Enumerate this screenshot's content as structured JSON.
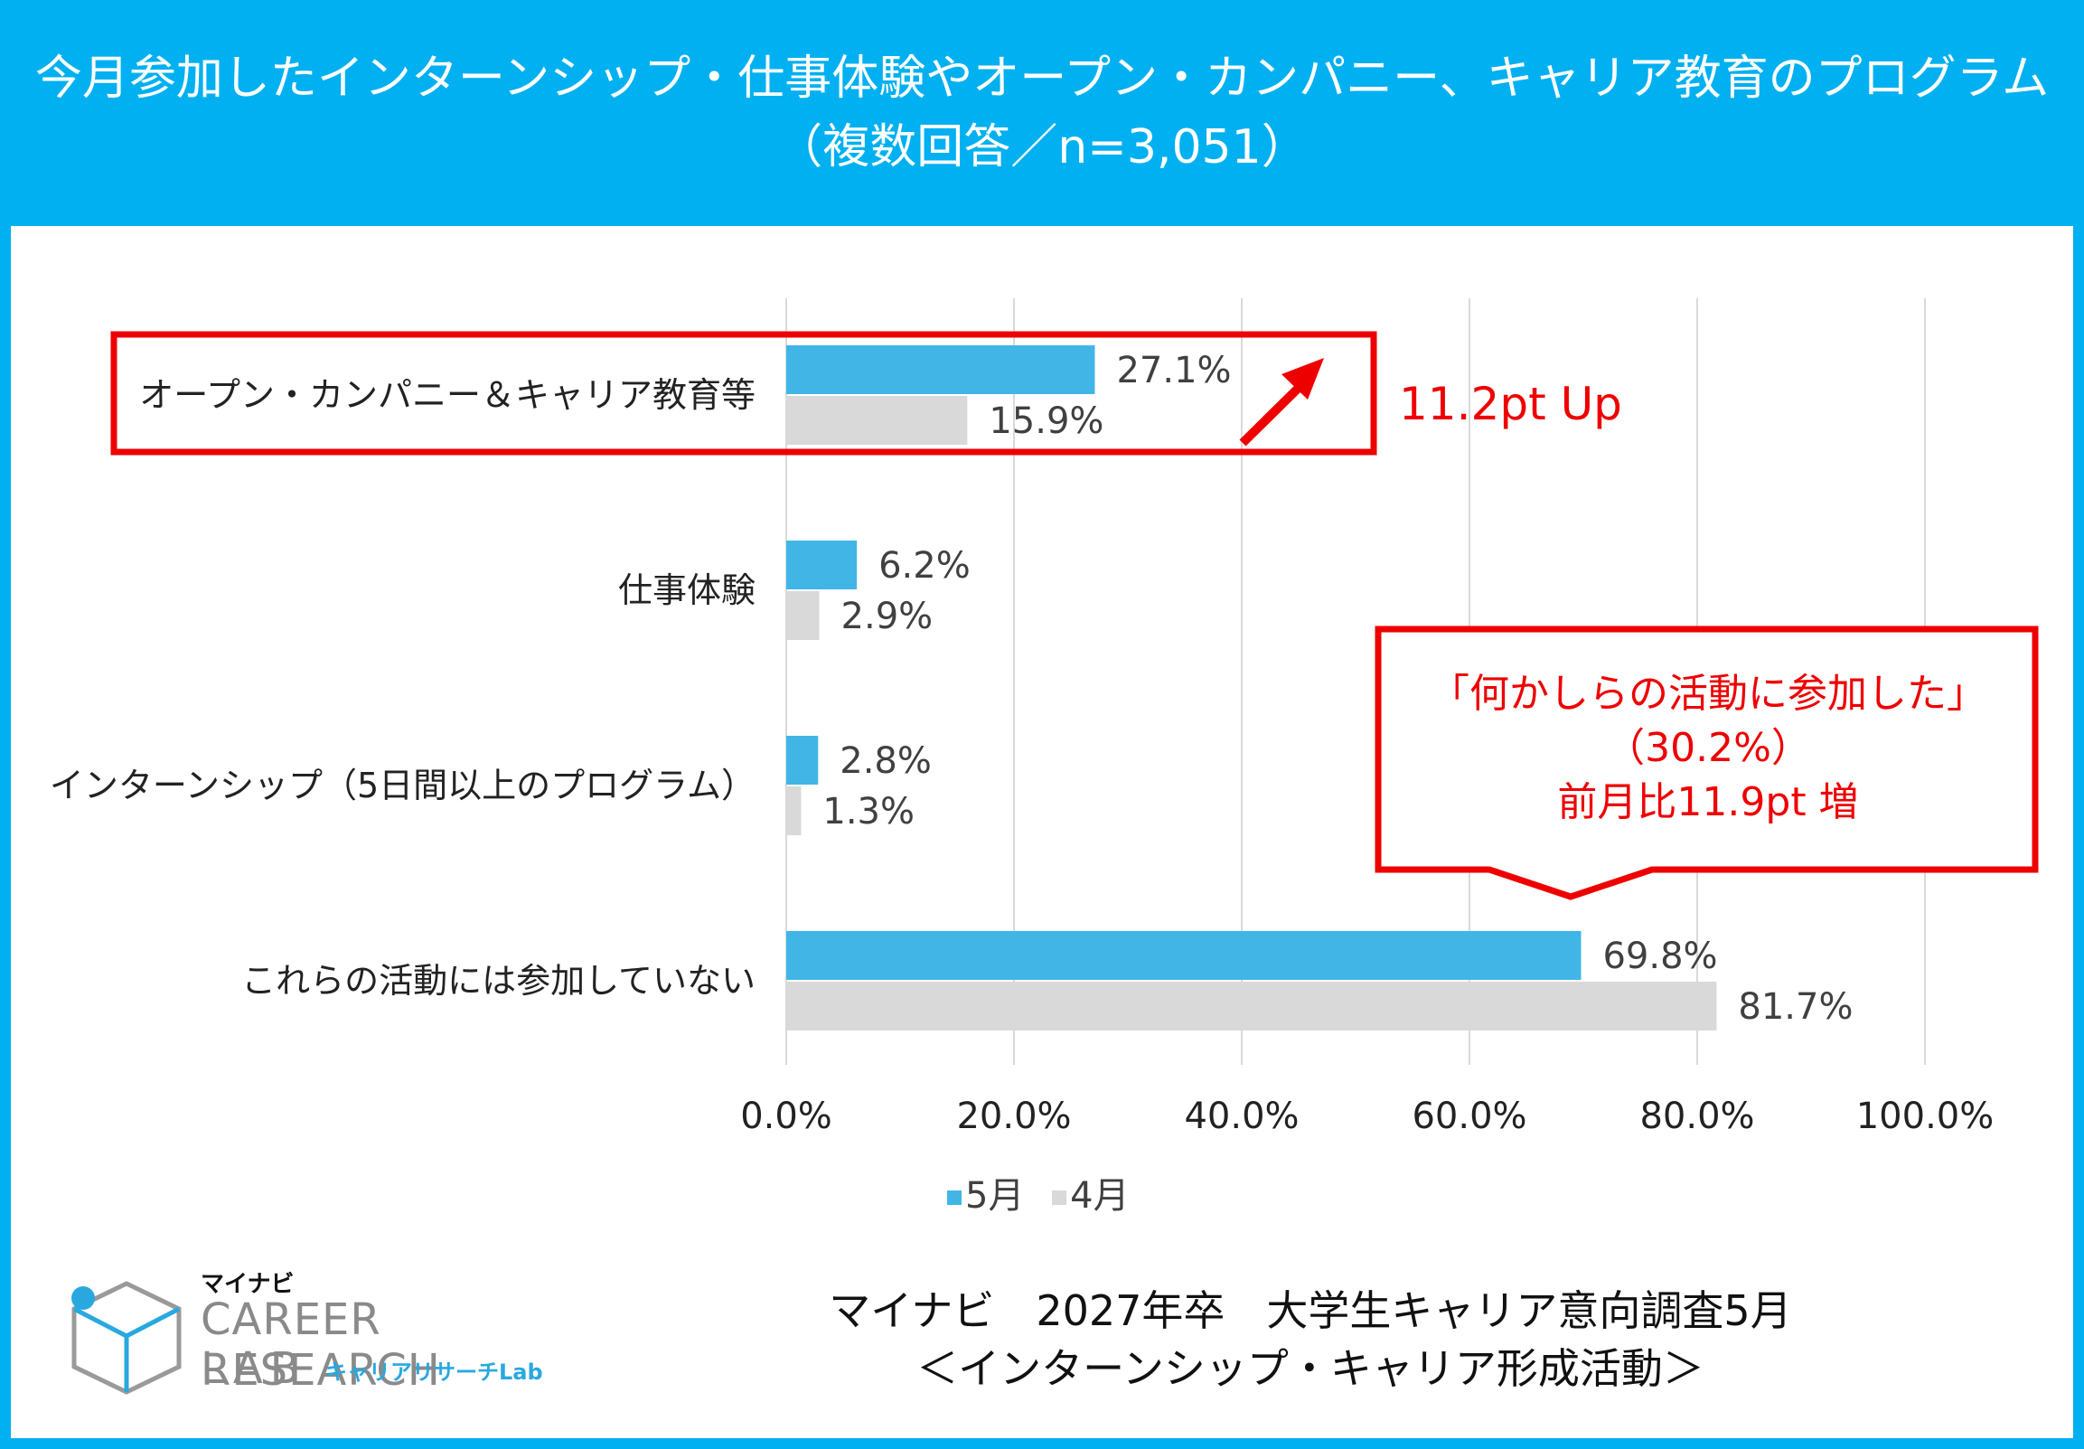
{
  "header": {
    "title_line1": "今月参加したインターンシップ・仕事体験やオープン・カンパニー、キャリア教育のプログラム",
    "title_line2": "（複数回答／n=3,051）"
  },
  "colors": {
    "header_bg": "#00b0f0",
    "series_may": "#41b6e6",
    "series_april": "#d9d9d9",
    "highlight": "#ee0000"
  },
  "chart_data": {
    "type": "bar",
    "orientation": "horizontal",
    "categories": [
      "オープン・カンパニー＆キャリア教育等",
      "仕事体験",
      "インターンシップ（5日間以上のプログラム）",
      "これらの活動には参加していない"
    ],
    "series": [
      {
        "name": "5月",
        "values": [
          27.1,
          6.2,
          2.8,
          69.8
        ],
        "labels": [
          "27.1%",
          "6.2%",
          "2.8%",
          "69.8%"
        ]
      },
      {
        "name": "4月",
        "values": [
          15.9,
          2.9,
          1.3,
          81.7
        ],
        "labels": [
          "15.9%",
          "2.9%",
          "1.3%",
          "81.7%"
        ]
      }
    ],
    "xlim": [
      0,
      100
    ],
    "ticks": [
      "0.0%",
      "20.0%",
      "40.0%",
      "60.0%",
      "80.0%",
      "100.0%"
    ],
    "grid": true,
    "legend": "bottom"
  },
  "annotations": {
    "up_label": "11.2pt Up",
    "callout_line1": "「何かしらの活動に参加した」",
    "callout_line2": "（30.2%）",
    "callout_line3": "前月比11.9pt 増"
  },
  "footer": {
    "line1": "マイナビ　2027年卒　大学生キャリア意向調査5月",
    "line2": "＜インターンシップ・キャリア形成活動＞"
  },
  "logo": {
    "brand": "マイナビ",
    "line1": "CAREER RESEARCH",
    "line2": "LAB",
    "kana": "キャリアリサーチLab"
  }
}
